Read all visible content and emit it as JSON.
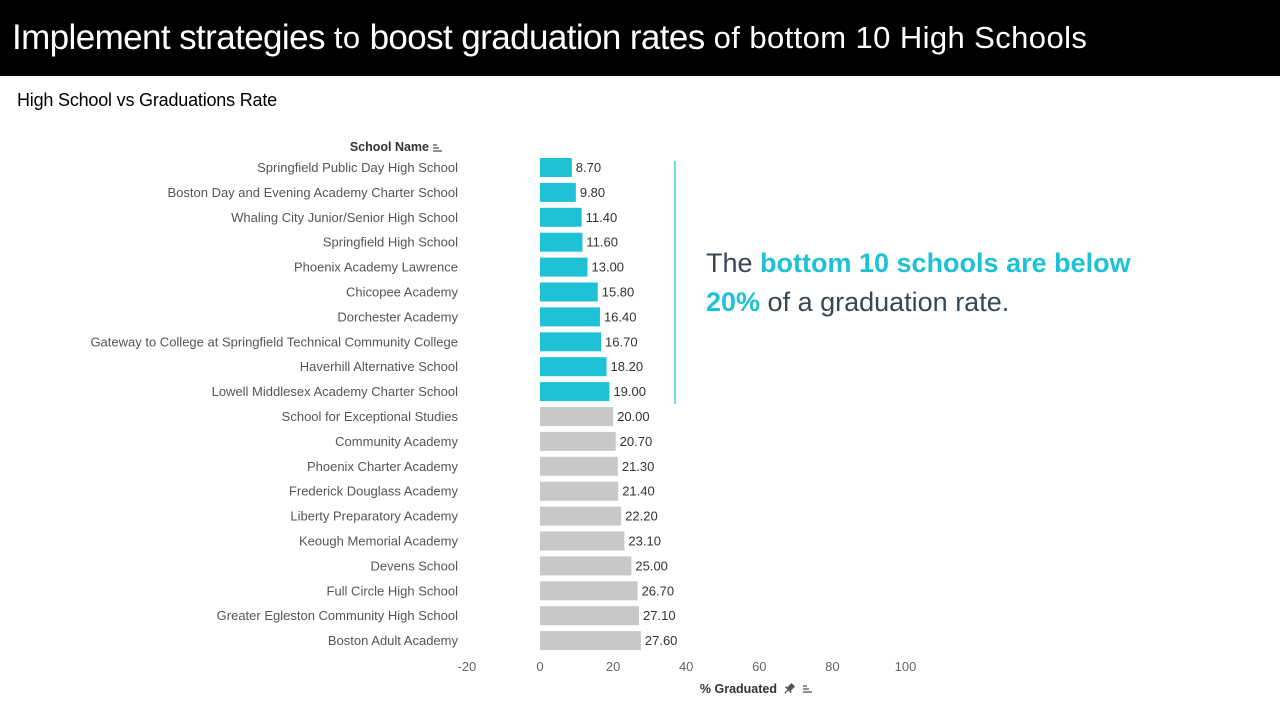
{
  "title": {
    "parts": [
      {
        "text": "Implement strategies",
        "style": "big"
      },
      {
        "text": " to ",
        "style": "normal"
      },
      {
        "text": "boost graduation rates",
        "style": "big"
      },
      {
        "text": " of bottom 10 High Schools",
        "style": "normal"
      }
    ]
  },
  "subtitle": "High School vs Graduations Rate",
  "callout": {
    "t1": "The ",
    "t2": "bottom 10 schools are below 20%",
    "t3": " of a graduation rate."
  },
  "colors": {
    "highlight": "#1fc1d6",
    "other": "#c8c8c8",
    "callout_text": "#3a4654"
  },
  "chart_data": {
    "type": "bar",
    "orientation": "horizontal",
    "ylabel": "School Name",
    "xlabel": "% Graduated",
    "xlim": [
      -20,
      100
    ],
    "xticks": [
      -20,
      0,
      20,
      40,
      60,
      80,
      100
    ],
    "grid": false,
    "categories": [
      "Springfield Public Day High School",
      "Boston Day and Evening Academy Charter School",
      "Whaling City Junior/Senior High School",
      "Springfield High School",
      "Phoenix Academy Lawrence",
      "Chicopee Academy",
      "Dorchester Academy",
      "Gateway to College at Springfield Technical Community College",
      "Haverhill Alternative School",
      "Lowell Middlesex Academy Charter School",
      "School for Exceptional Studies",
      "Community Academy",
      "Phoenix Charter Academy",
      "Frederick Douglass Academy",
      "Liberty Preparatory Academy",
      "Keough Memorial Academy",
      "Devens School",
      "Full Circle High School",
      "Greater Egleston Community High School",
      "Boston Adult Academy"
    ],
    "values": [
      8.7,
      9.8,
      11.4,
      11.6,
      13.0,
      15.8,
      16.4,
      16.7,
      18.2,
      19.0,
      20.0,
      20.7,
      21.3,
      21.4,
      22.2,
      23.1,
      25.0,
      26.7,
      27.1,
      27.6
    ],
    "value_labels": [
      "8.70",
      "9.80",
      "11.40",
      "11.60",
      "13.00",
      "15.80",
      "16.40",
      "16.70",
      "18.20",
      "19.00",
      "20.00",
      "20.70",
      "21.30",
      "21.40",
      "22.20",
      "23.10",
      "25.00",
      "26.70",
      "27.10",
      "27.60"
    ],
    "highlighted_count": 10
  }
}
